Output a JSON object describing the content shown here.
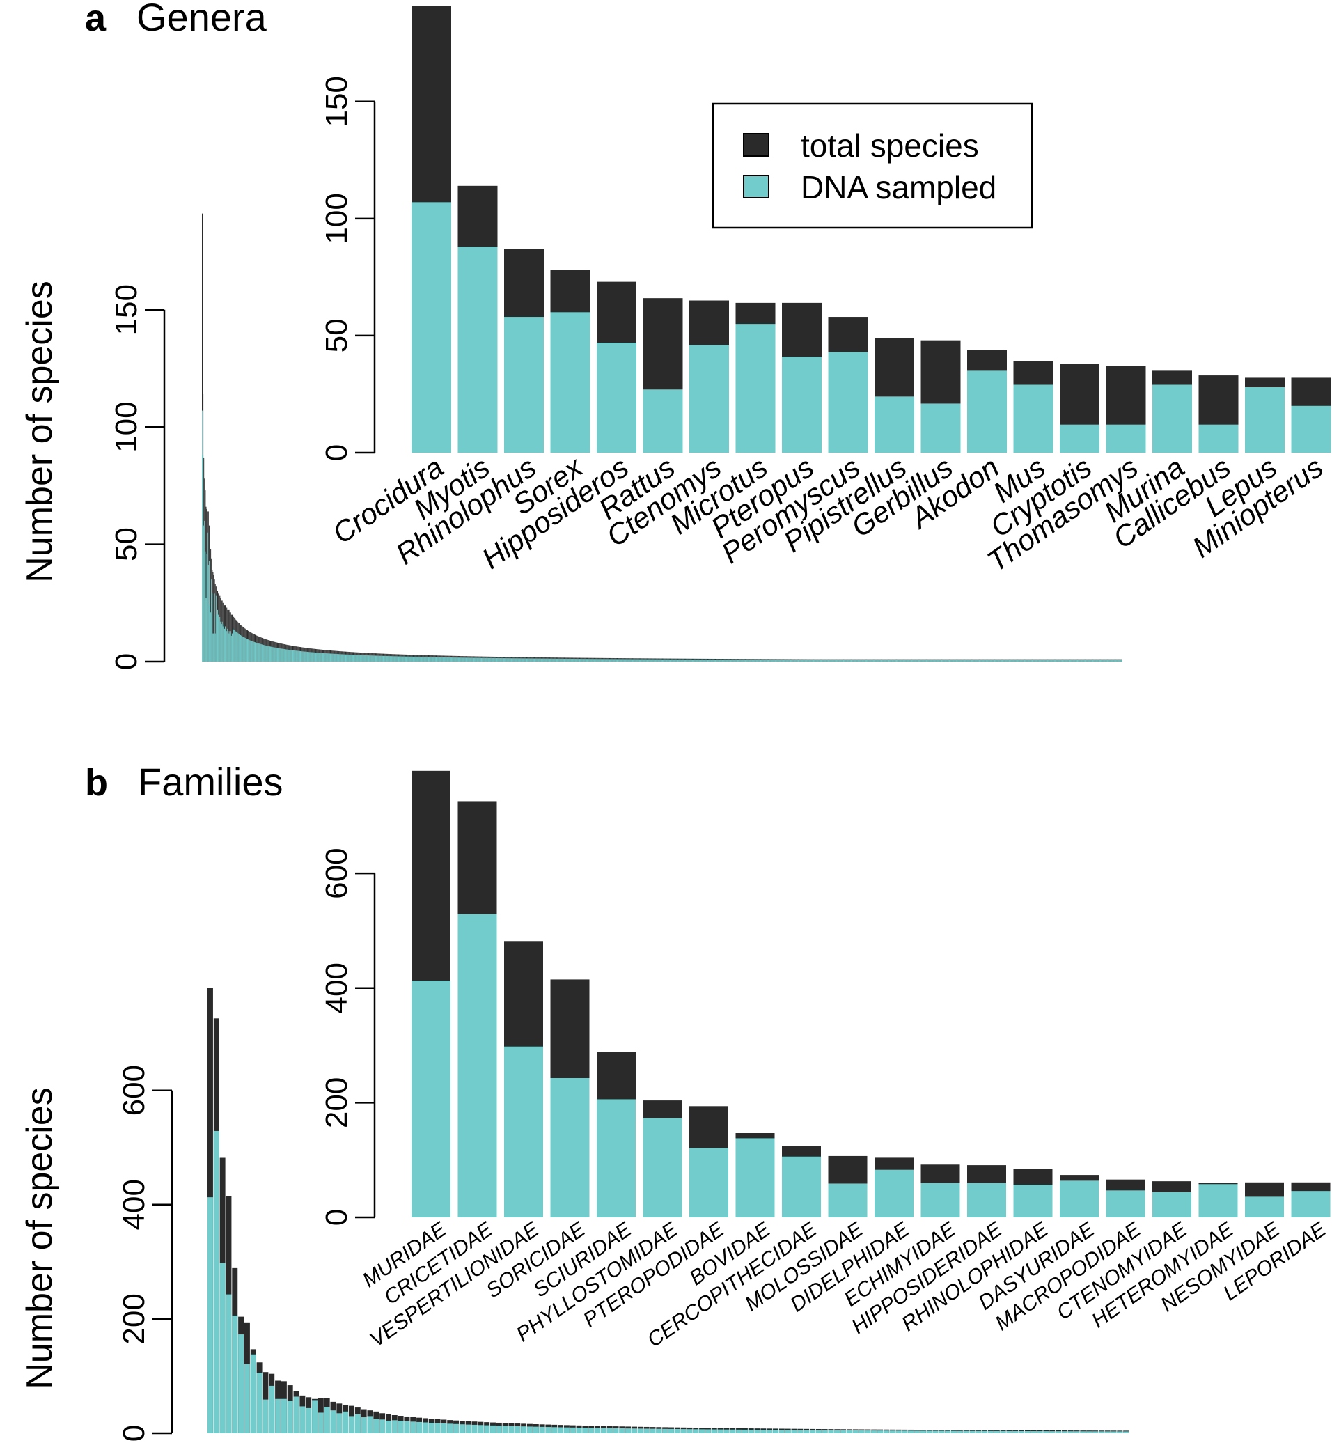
{
  "colors": {
    "total": "#2a2a2a",
    "sampled": "#72cccb",
    "axis": "#000000"
  },
  "legend": {
    "total": "total species",
    "sampled": "DNA sampled",
    "placement": "top-right"
  },
  "chart_data": [
    {
      "type": "bar",
      "panel_letter": "a",
      "title": "Genera",
      "ylabel": "Number of species",
      "overview": {
        "ylim": [
          0,
          190
        ],
        "yticks": [
          0,
          50,
          100,
          150
        ],
        "description_values": "ranked genus species counts",
        "totals": [
          191,
          114,
          87,
          78,
          73,
          66,
          65,
          64,
          64,
          58,
          49,
          48,
          44,
          39,
          38,
          37,
          35,
          33,
          32,
          32,
          30,
          29,
          28,
          28,
          27,
          26,
          26,
          25,
          25,
          24,
          24,
          23,
          23,
          22,
          22,
          22,
          21,
          21,
          20,
          20
        ],
        "sampled": [
          107,
          88,
          58,
          60,
          47,
          27,
          46,
          55,
          41,
          43,
          24,
          21,
          35,
          29,
          12,
          12,
          29,
          12,
          28,
          20,
          22,
          20,
          18,
          19,
          17,
          16,
          17,
          15,
          16,
          14,
          15,
          14,
          13,
          14,
          12,
          13,
          12,
          13,
          11,
          12
        ]
      },
      "inset": {
        "ylim": [
          0,
          191
        ],
        "yticks": [
          0,
          50,
          100,
          150
        ],
        "categories": [
          "Crocidura",
          "Myotis",
          "Rhinolophus",
          "Sorex",
          "Hipposideros",
          "Rattus",
          "Ctenomys",
          "Microtus",
          "Pteropus",
          "Peromyscus",
          "Pipistrellus",
          "Gerbillus",
          "Akodon",
          "Mus",
          "Cryptotis",
          "Thomasomys",
          "Murina",
          "Callicebus",
          "Lepus",
          "Miniopterus"
        ],
        "series": [
          {
            "name": "total species",
            "values": [
              191,
              114,
              87,
              78,
              73,
              66,
              65,
              64,
              64,
              58,
              49,
              48,
              44,
              39,
              38,
              37,
              35,
              33,
              32,
              32
            ]
          },
          {
            "name": "DNA sampled",
            "values": [
              107,
              88,
              58,
              60,
              47,
              27,
              46,
              55,
              41,
              43,
              24,
              21,
              35,
              29,
              12,
              12,
              29,
              12,
              28,
              20
            ]
          }
        ]
      }
    },
    {
      "type": "bar",
      "panel_letter": "b",
      "title": "Families",
      "ylabel": "Number of species",
      "overview": {
        "ylim": [
          0,
          780
        ],
        "yticks": [
          0,
          200,
          400,
          600
        ],
        "totals": [
          779,
          726,
          482,
          415,
          289,
          204,
          194,
          147,
          124,
          107,
          104,
          92,
          91,
          84,
          74,
          66,
          63,
          60,
          61,
          61,
          55,
          52,
          50,
          48,
          45,
          42,
          40,
          38,
          35,
          33
        ],
        "sampled": [
          413,
          529,
          298,
          243,
          206,
          173,
          121,
          138,
          106,
          59,
          83,
          60,
          60,
          57,
          64,
          47,
          44,
          58,
          36,
          46,
          40,
          35,
          38,
          30,
          33,
          28,
          30,
          25,
          24,
          22
        ]
      },
      "inset": {
        "ylim": [
          0,
          780
        ],
        "yticks": [
          0,
          200,
          400,
          600
        ],
        "categories": [
          "MURIDAE",
          "CRICETIDAE",
          "VESPERTILIONIDAE",
          "SORICIDAE",
          "SCIURIDAE",
          "PHYLLOSTOMIDAE",
          "PTEROPODIDAE",
          "BOVIDAE",
          "CERCOPITHECIDAE",
          "MOLOSSIDAE",
          "DIDELPHIDAE",
          "ECHIMYIDAE",
          "HIPPOSIDERIDAE",
          "RHINOLOPHIDAE",
          "DASYURIDAE",
          "MACROPODIDAE",
          "CTENOMYIDAE",
          "HETEROMYIDAE",
          "NESOMYIDAE",
          "LEPORIDAE"
        ],
        "series": [
          {
            "name": "total species",
            "values": [
              779,
              726,
              482,
              415,
              289,
              204,
              194,
              147,
              124,
              107,
              104,
              92,
              91,
              84,
              74,
              66,
              63,
              60,
              61,
              61
            ]
          },
          {
            "name": "DNA sampled",
            "values": [
              413,
              529,
              298,
              243,
              206,
              173,
              121,
              138,
              106,
              59,
              83,
              60,
              60,
              57,
              64,
              47,
              44,
              58,
              36,
              46
            ]
          }
        ]
      }
    }
  ]
}
